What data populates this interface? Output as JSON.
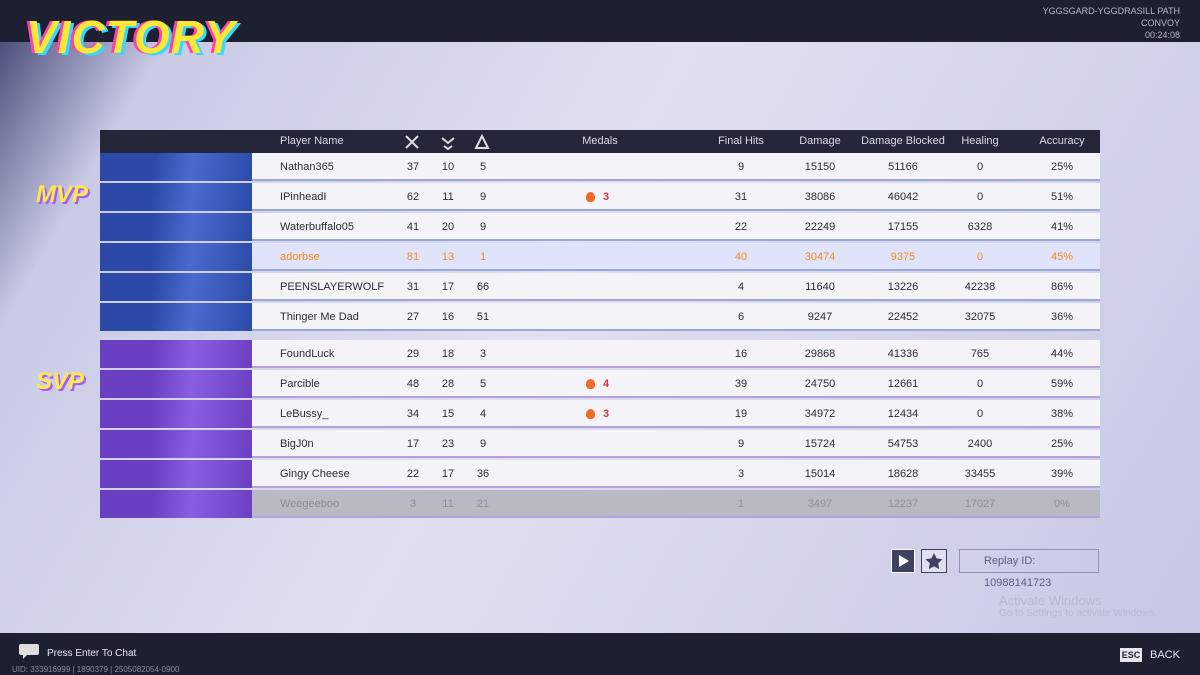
{
  "header": {
    "title": "VICTORY",
    "map": "YGGSGARD-YGGDRASILL PATH",
    "mode": "CONVOY",
    "time": "00:24:08"
  },
  "table": {
    "columns": {
      "player": "Player Name",
      "medals": "Medals",
      "final_hits": "Final Hits",
      "damage": "Damage",
      "damage_blocked": "Damage Blocked",
      "healing": "Healing",
      "accuracy": "Accuracy"
    },
    "teams": [
      {
        "badge": "MVP",
        "rows": [
          {
            "name": "Nathan365",
            "kills": 37,
            "deaths": 10,
            "assists": 5,
            "final_hits": 9,
            "damage": 15150,
            "damage_blocked": 51166,
            "healing": 0,
            "accuracy": "25%"
          },
          {
            "name": "IPinheadI",
            "kills": 62,
            "deaths": 11,
            "assists": 9,
            "medal": "3",
            "final_hits": 31,
            "damage": 38086,
            "damage_blocked": 46042,
            "healing": 0,
            "accuracy": "51%"
          },
          {
            "name": "Waterbuffalo05",
            "kills": 41,
            "deaths": 20,
            "assists": 9,
            "final_hits": 22,
            "damage": 22249,
            "damage_blocked": 17155,
            "healing": 6328,
            "accuracy": "41%"
          },
          {
            "name": "adorbse",
            "kills": 81,
            "deaths": 13,
            "assists": 1,
            "final_hits": 40,
            "damage": 30474,
            "damage_blocked": 9375,
            "healing": 0,
            "accuracy": "45%",
            "highlight": true
          },
          {
            "name": "PEENSLAYERWOLF",
            "kills": 31,
            "deaths": 17,
            "assists": 66,
            "final_hits": 4,
            "damage": 11640,
            "damage_blocked": 13226,
            "healing": 42238,
            "accuracy": "86%"
          },
          {
            "name": "Thinger Me Dad",
            "kills": 27,
            "deaths": 16,
            "assists": 51,
            "final_hits": 6,
            "damage": 9247,
            "damage_blocked": 22452,
            "healing": 32075,
            "accuracy": "36%"
          }
        ]
      },
      {
        "badge": "SVP",
        "rows": [
          {
            "name": "FoundLuck",
            "kills": 29,
            "deaths": 18,
            "assists": 3,
            "final_hits": 16,
            "damage": 29868,
            "damage_blocked": 41336,
            "healing": 765,
            "accuracy": "44%"
          },
          {
            "name": "Parcible",
            "kills": 48,
            "deaths": 28,
            "assists": 5,
            "medal": "4",
            "final_hits": 39,
            "damage": 24750,
            "damage_blocked": 12661,
            "healing": 0,
            "accuracy": "59%"
          },
          {
            "name": "LeBussy_",
            "kills": 34,
            "deaths": 15,
            "assists": 4,
            "medal": "3",
            "final_hits": 19,
            "damage": 34972,
            "damage_blocked": 12434,
            "healing": 0,
            "accuracy": "38%"
          },
          {
            "name": "BigJ0n",
            "kills": 17,
            "deaths": 23,
            "assists": 9,
            "final_hits": 9,
            "damage": 15724,
            "damage_blocked": 54753,
            "healing": 2400,
            "accuracy": "25%"
          },
          {
            "name": "Gingy Cheese",
            "kills": 22,
            "deaths": 17,
            "assists": 36,
            "final_hits": 3,
            "damage": 15014,
            "damage_blocked": 18628,
            "healing": 33455,
            "accuracy": "39%"
          },
          {
            "name": "Weegeeboo",
            "kills": 3,
            "deaths": 11,
            "assists": 21,
            "final_hits": 1,
            "damage": 3497,
            "damage_blocked": 12237,
            "healing": 17027,
            "accuracy": "0%",
            "left_match": true
          }
        ]
      }
    ]
  },
  "footer": {
    "chat": "Press Enter To Chat",
    "uid": "UID: 333916999 | 1890379 | 2505082054-0900",
    "replay": "Replay ID: 10988141723",
    "esc": "ESC",
    "back": "BACK",
    "watermark_title": "Activate Windows",
    "watermark_text": "Go to Settings to activate Windows."
  }
}
